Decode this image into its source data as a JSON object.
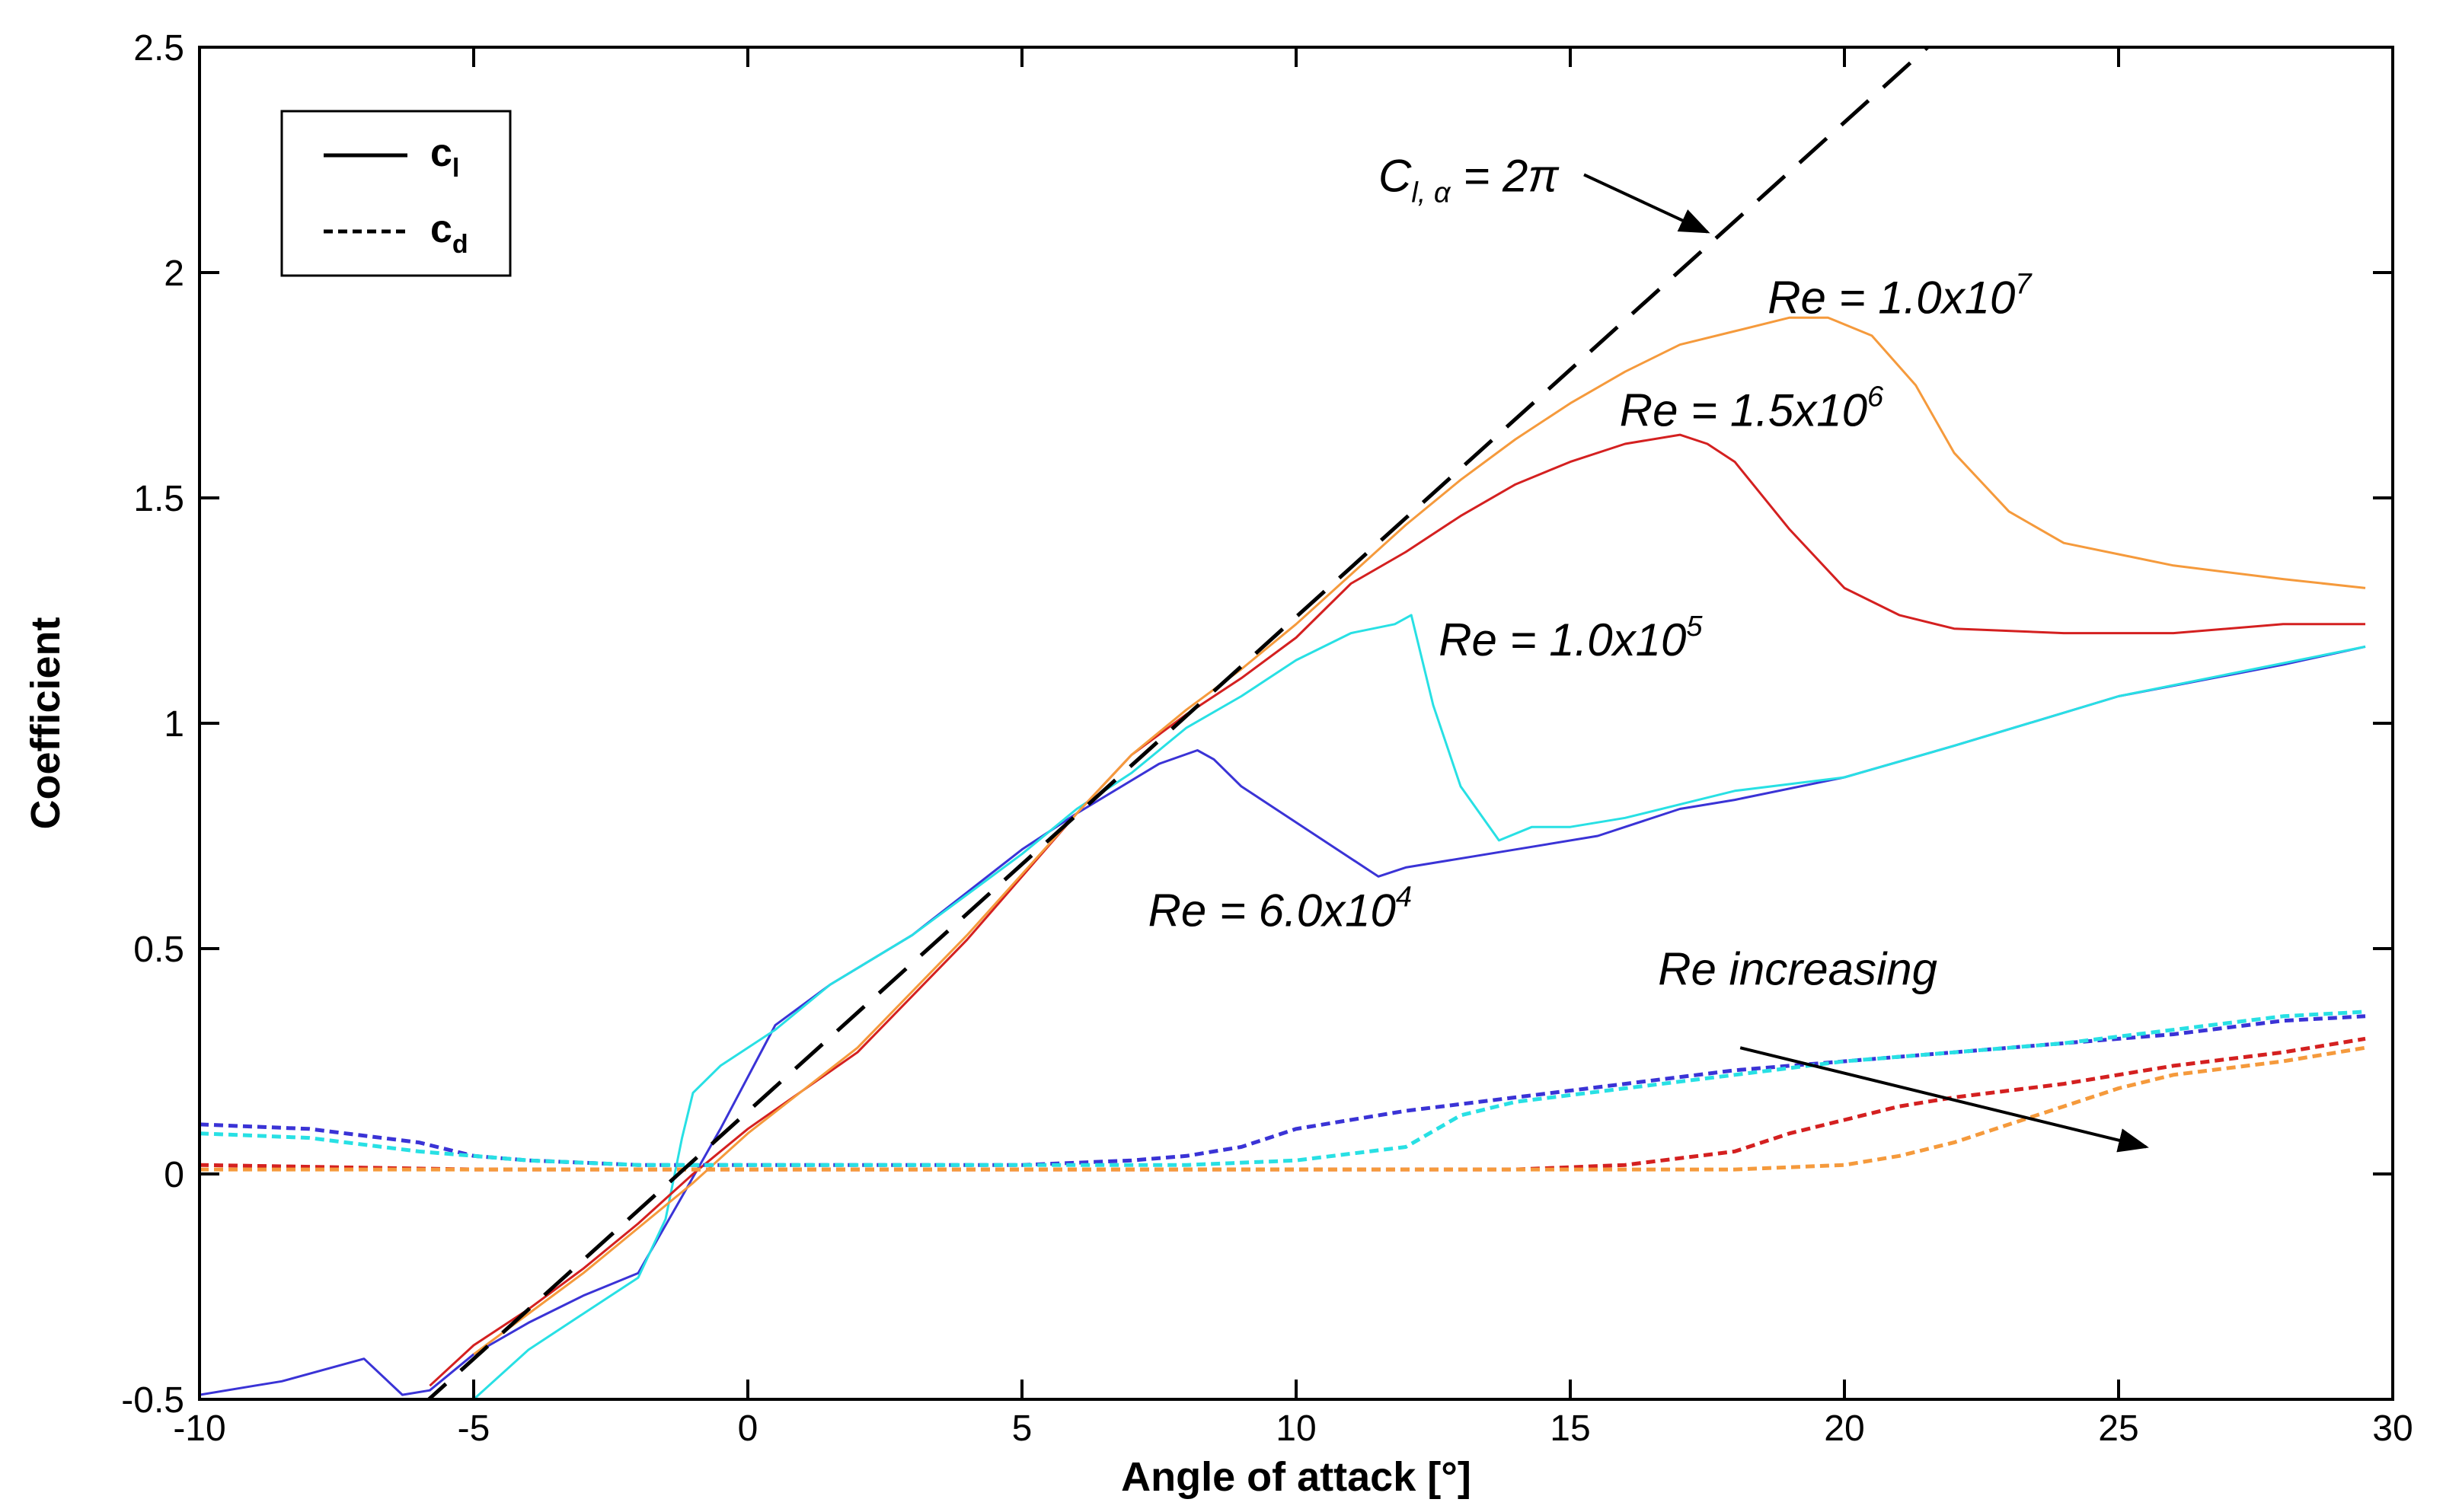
{
  "chart_data": {
    "type": "line",
    "title": "",
    "xlabel": "Angle of attack [°]",
    "ylabel": "Coefficient",
    "xlim": [
      -10,
      30
    ],
    "ylim": [
      -0.5,
      2.5
    ],
    "xticks": [
      "-10",
      "-5",
      "0",
      "5",
      "10",
      "15",
      "20",
      "25",
      "30"
    ],
    "yticks": [
      "-0.5",
      "0",
      "0.5",
      "1",
      "1.5",
      "2",
      "2.5"
    ],
    "legend": {
      "placement": "top-left",
      "entries": [
        {
          "label_main": "c",
          "label_sub": "l",
          "style": "solid"
        },
        {
          "label_main": "c",
          "label_sub": "d",
          "style": "dotted"
        }
      ]
    },
    "colors": {
      "re6e4": "#3a33d6",
      "re1e5": "#28e0e4",
      "re15e6": "#d42020",
      "re1e7": "#f59a3c",
      "reference": "#000000"
    },
    "series": [
      {
        "name": "Cl Re=6.0x10^4",
        "kind": "cl",
        "color_key": "re6e4",
        "x": [
          -10,
          -9,
          -8.5,
          -7,
          -6.3,
          -5.8,
          -5,
          -4,
          -3,
          -2,
          -1.2,
          -0.5,
          0.5,
          1.5,
          3,
          5,
          6,
          7.5,
          8.2,
          8.5,
          9,
          10,
          11.5,
          12,
          14,
          15.5,
          17,
          18,
          20,
          22,
          25,
          28,
          29.5
        ],
        "y": [
          -0.49,
          -0.47,
          -0.46,
          -0.41,
          -0.49,
          -0.48,
          -0.4,
          -0.33,
          -0.27,
          -0.22,
          -0.05,
          0.1,
          0.33,
          0.42,
          0.53,
          0.72,
          0.8,
          0.91,
          0.94,
          0.92,
          0.86,
          0.78,
          0.66,
          0.68,
          0.72,
          0.75,
          0.81,
          0.83,
          0.88,
          0.95,
          1.06,
          1.13,
          1.17
        ]
      },
      {
        "name": "Cl Re=1.0x10^5",
        "kind": "cl",
        "color_key": "re1e5",
        "x": [
          -5,
          -4,
          -3,
          -2,
          -1.5,
          -1.2,
          -1,
          -0.5,
          0,
          0.5,
          1.5,
          3,
          5,
          6,
          7,
          8,
          9,
          10,
          11,
          11.8,
          12.1,
          12.5,
          13,
          13.7,
          14.3,
          15,
          16,
          17,
          18,
          20,
          22,
          25,
          29.5
        ],
        "y": [
          -0.5,
          -0.39,
          -0.31,
          -0.23,
          -0.1,
          0.08,
          0.18,
          0.24,
          0.28,
          0.32,
          0.42,
          0.53,
          0.71,
          0.81,
          0.89,
          0.99,
          1.06,
          1.14,
          1.2,
          1.22,
          1.24,
          1.04,
          0.86,
          0.74,
          0.77,
          0.77,
          0.79,
          0.82,
          0.85,
          0.88,
          0.95,
          1.06,
          1.17
        ]
      },
      {
        "name": "Cl Re=1.5x10^6",
        "kind": "cl",
        "color_key": "re15e6",
        "x": [
          -5.8,
          -5,
          -4,
          -3,
          -2,
          -1,
          0,
          2,
          4,
          6,
          7,
          8,
          9,
          10,
          11,
          12,
          13,
          14,
          15,
          16,
          17,
          17.5,
          18,
          19,
          20,
          21,
          22,
          24,
          26,
          28,
          29.5
        ],
        "y": [
          -0.47,
          -0.38,
          -0.3,
          -0.21,
          -0.11,
          0.0,
          0.1,
          0.27,
          0.52,
          0.8,
          0.93,
          1.02,
          1.1,
          1.19,
          1.31,
          1.38,
          1.46,
          1.53,
          1.58,
          1.62,
          1.64,
          1.62,
          1.58,
          1.43,
          1.3,
          1.24,
          1.21,
          1.2,
          1.2,
          1.22,
          1.22
        ]
      },
      {
        "name": "Cl Re=1.0x10^7",
        "kind": "cl",
        "color_key": "re1e7",
        "x": [
          -5,
          -4,
          -3,
          -2,
          -1,
          0,
          2,
          4,
          6,
          7,
          8,
          9,
          10,
          11,
          12,
          13,
          14,
          15,
          16,
          17,
          18,
          19,
          19.7,
          20.5,
          21.3,
          22,
          23,
          24,
          26,
          28,
          29.5
        ],
        "y": [
          -0.4,
          -0.31,
          -0.22,
          -0.12,
          -0.02,
          0.09,
          0.28,
          0.53,
          0.8,
          0.93,
          1.03,
          1.12,
          1.22,
          1.33,
          1.44,
          1.54,
          1.63,
          1.71,
          1.78,
          1.84,
          1.87,
          1.9,
          1.9,
          1.86,
          1.75,
          1.6,
          1.47,
          1.4,
          1.35,
          1.32,
          1.3
        ]
      },
      {
        "name": "Cd Re=6.0x10^4",
        "kind": "cd",
        "color_key": "re6e4",
        "x": [
          -10,
          -8,
          -6,
          -5,
          -4,
          -2,
          0,
          2,
          5,
          7,
          8,
          9,
          10,
          12,
          14,
          16,
          18,
          20,
          22,
          24,
          26,
          28,
          29.5
        ],
        "y": [
          0.11,
          0.1,
          0.07,
          0.04,
          0.03,
          0.02,
          0.02,
          0.02,
          0.02,
          0.03,
          0.04,
          0.06,
          0.1,
          0.14,
          0.17,
          0.2,
          0.23,
          0.25,
          0.27,
          0.29,
          0.31,
          0.34,
          0.35
        ]
      },
      {
        "name": "Cd Re=1.0x10^5",
        "kind": "cd",
        "color_key": "re1e5",
        "x": [
          -10,
          -8,
          -6,
          -5,
          -4,
          -2,
          0,
          2,
          5,
          8,
          10,
          12,
          13,
          14,
          16,
          18,
          20,
          22,
          24,
          26,
          28,
          29.5
        ],
        "y": [
          0.09,
          0.08,
          0.05,
          0.04,
          0.03,
          0.02,
          0.02,
          0.02,
          0.02,
          0.02,
          0.03,
          0.06,
          0.13,
          0.16,
          0.19,
          0.22,
          0.25,
          0.27,
          0.29,
          0.32,
          0.35,
          0.36
        ]
      },
      {
        "name": "Cd Re=1.5x10^6",
        "kind": "cd",
        "color_key": "re15e6",
        "x": [
          -10,
          -5,
          0,
          5,
          10,
          14,
          16,
          18,
          19,
          20,
          21,
          22,
          24,
          26,
          28,
          29.5
        ],
        "y": [
          0.02,
          0.01,
          0.01,
          0.01,
          0.01,
          0.01,
          0.02,
          0.05,
          0.09,
          0.12,
          0.15,
          0.17,
          0.2,
          0.24,
          0.27,
          0.3
        ]
      },
      {
        "name": "Cd Re=1.0x10^7",
        "kind": "cd",
        "color_key": "re1e7",
        "x": [
          -10,
          -5,
          0,
          5,
          10,
          15,
          18,
          20,
          21,
          22,
          23,
          24,
          25,
          26,
          28,
          29.5
        ],
        "y": [
          0.01,
          0.01,
          0.01,
          0.01,
          0.01,
          0.01,
          0.01,
          0.02,
          0.04,
          0.07,
          0.11,
          0.15,
          0.19,
          0.22,
          0.25,
          0.28
        ]
      },
      {
        "name": "Cl,α = 2π",
        "kind": "reference",
        "color_key": "reference",
        "x": [
          -6,
          21.7
        ],
        "y": [
          -0.52,
          2.52
        ]
      }
    ],
    "annotations": [
      {
        "id": "cla",
        "text_main": "C",
        "text_sub": "l, α",
        "text_tail": " = 2π",
        "x": 11.5,
        "y": 2.18,
        "arrow_to": [
          17.5,
          2.09
        ]
      },
      {
        "id": "re1e7",
        "text_main": "Re = 1.0x10",
        "text_sup": "7",
        "x": 18.6,
        "y": 1.91
      },
      {
        "id": "re15e6",
        "text_main": "Re = 1.5x10",
        "text_sup": "6",
        "x": 15.9,
        "y": 1.66
      },
      {
        "id": "re1e5",
        "text_main": "Re = 1.0x10",
        "text_sup": "5",
        "x": 12.6,
        "y": 1.15
      },
      {
        "id": "re6e4",
        "text_main": "Re = 6.0x10",
        "text_sup": "4",
        "x": 7.3,
        "y": 0.55
      },
      {
        "id": "increasing",
        "text_main": "Re increasing",
        "x": 16.6,
        "y": 0.42,
        "arrow_from": [
          18.1,
          0.28
        ],
        "arrow_to": [
          25.5,
          0.06
        ]
      }
    ]
  }
}
